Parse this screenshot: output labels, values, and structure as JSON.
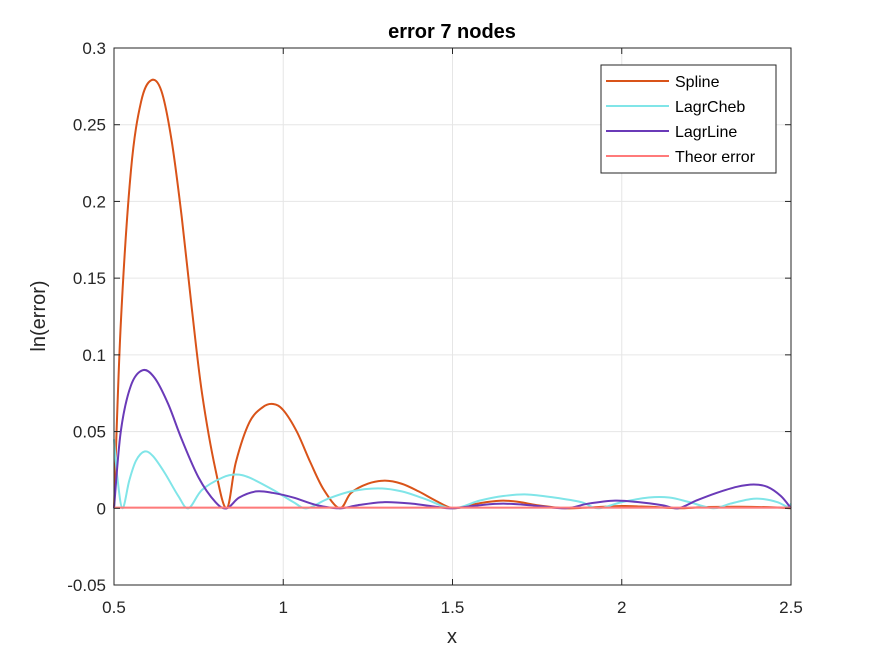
{
  "chart_data": {
    "type": "line",
    "title": "error 7 nodes",
    "xlabel": "x",
    "ylabel": "ln(error)",
    "xlim": [
      0.5,
      2.5
    ],
    "ylim": [
      -0.05,
      0.3
    ],
    "xticks": [
      "0.5",
      "1",
      "1.5",
      "2",
      "2.5"
    ],
    "xtick_values": [
      0.5,
      1,
      1.5,
      2,
      2.5
    ],
    "yticks": [
      "-0.05",
      "0",
      "0.05",
      "0.1",
      "0.15",
      "0.2",
      "0.25",
      "0.3"
    ],
    "ytick_values": [
      -0.05,
      0,
      0.05,
      0.1,
      0.15,
      0.2,
      0.25,
      0.3
    ],
    "grid": true,
    "legend_position": "top-right",
    "series": [
      {
        "name": "Spline",
        "color": "#D95319",
        "points": [
          [
            0.5,
            0
          ],
          [
            0.52,
            0.12
          ],
          [
            0.55,
            0.22
          ],
          [
            0.58,
            0.265
          ],
          [
            0.61,
            0.279
          ],
          [
            0.64,
            0.272
          ],
          [
            0.67,
            0.24
          ],
          [
            0.7,
            0.19
          ],
          [
            0.73,
            0.13
          ],
          [
            0.76,
            0.075
          ],
          [
            0.8,
            0.025
          ],
          [
            0.833,
            0
          ],
          [
            0.86,
            0.03
          ],
          [
            0.9,
            0.056
          ],
          [
            0.94,
            0.066
          ],
          [
            0.97,
            0.068
          ],
          [
            1.0,
            0.064
          ],
          [
            1.04,
            0.05
          ],
          [
            1.08,
            0.03
          ],
          [
            1.12,
            0.012
          ],
          [
            1.167,
            0
          ],
          [
            1.2,
            0.01
          ],
          [
            1.25,
            0.016
          ],
          [
            1.3,
            0.018
          ],
          [
            1.35,
            0.016
          ],
          [
            1.4,
            0.011
          ],
          [
            1.45,
            0.005
          ],
          [
            1.5,
            0
          ],
          [
            1.55,
            0.002
          ],
          [
            1.6,
            0.004
          ],
          [
            1.65,
            0.005
          ],
          [
            1.7,
            0.004
          ],
          [
            1.75,
            0.002
          ],
          [
            1.833,
            0
          ],
          [
            1.9,
            0.0005
          ],
          [
            2.0,
            0.0015
          ],
          [
            2.05,
            0.0012
          ],
          [
            2.1,
            0.0008
          ],
          [
            2.167,
            0
          ],
          [
            2.25,
            0.0008
          ],
          [
            2.35,
            0.001
          ],
          [
            2.45,
            0.0006
          ],
          [
            2.5,
            0
          ]
        ]
      },
      {
        "name": "LagrCheb",
        "color": "#80E5E8",
        "points": [
          [
            0.5,
            0.045
          ],
          [
            0.51,
            0.02
          ],
          [
            0.525,
            0
          ],
          [
            0.545,
            0.018
          ],
          [
            0.565,
            0.031
          ],
          [
            0.59,
            0.037
          ],
          [
            0.615,
            0.034
          ],
          [
            0.65,
            0.023
          ],
          [
            0.69,
            0.008
          ],
          [
            0.72,
            0
          ],
          [
            0.76,
            0.012
          ],
          [
            0.82,
            0.02
          ],
          [
            0.86,
            0.022
          ],
          [
            0.9,
            0.02
          ],
          [
            0.97,
            0.012
          ],
          [
            1.03,
            0.004
          ],
          [
            1.07,
            0
          ],
          [
            1.13,
            0.006
          ],
          [
            1.2,
            0.011
          ],
          [
            1.28,
            0.013
          ],
          [
            1.35,
            0.011
          ],
          [
            1.42,
            0.006
          ],
          [
            1.5,
            0
          ],
          [
            1.58,
            0.005
          ],
          [
            1.65,
            0.008
          ],
          [
            1.72,
            0.009
          ],
          [
            1.8,
            0.007
          ],
          [
            1.88,
            0.004
          ],
          [
            1.93,
            0
          ],
          [
            2.0,
            0.004
          ],
          [
            2.08,
            0.007
          ],
          [
            2.14,
            0.007
          ],
          [
            2.2,
            0.004
          ],
          [
            2.27,
            0
          ],
          [
            2.32,
            0.003
          ],
          [
            2.38,
            0.006
          ],
          [
            2.42,
            0.006
          ],
          [
            2.46,
            0.004
          ],
          [
            2.49,
            0.001
          ],
          [
            2.5,
            0.003
          ]
        ]
      },
      {
        "name": "LagrLine",
        "color": "#6A3AB8",
        "points": [
          [
            0.5,
            0
          ],
          [
            0.52,
            0.05
          ],
          [
            0.55,
            0.08
          ],
          [
            0.585,
            0.09
          ],
          [
            0.62,
            0.085
          ],
          [
            0.66,
            0.068
          ],
          [
            0.7,
            0.045
          ],
          [
            0.75,
            0.02
          ],
          [
            0.8,
            0.004
          ],
          [
            0.833,
            0
          ],
          [
            0.87,
            0.007
          ],
          [
            0.92,
            0.011
          ],
          [
            0.97,
            0.01
          ],
          [
            1.03,
            0.007
          ],
          [
            1.1,
            0.002
          ],
          [
            1.167,
            0
          ],
          [
            1.22,
            0.002
          ],
          [
            1.3,
            0.004
          ],
          [
            1.38,
            0.003
          ],
          [
            1.45,
            0.001
          ],
          [
            1.5,
            0
          ],
          [
            1.58,
            0.002
          ],
          [
            1.65,
            0.003
          ],
          [
            1.73,
            0.002
          ],
          [
            1.833,
            0
          ],
          [
            1.9,
            0.003
          ],
          [
            1.98,
            0.005
          ],
          [
            2.05,
            0.004
          ],
          [
            2.12,
            0.002
          ],
          [
            2.167,
            0
          ],
          [
            2.22,
            0.005
          ],
          [
            2.28,
            0.01
          ],
          [
            2.34,
            0.014
          ],
          [
            2.39,
            0.0155
          ],
          [
            2.43,
            0.014
          ],
          [
            2.47,
            0.008
          ],
          [
            2.5,
            0
          ]
        ]
      },
      {
        "name": "Theor error",
        "color": "#FF7A7A",
        "points": [
          [
            0.5,
            0.0004
          ],
          [
            2.5,
            0.0004
          ]
        ]
      }
    ]
  }
}
